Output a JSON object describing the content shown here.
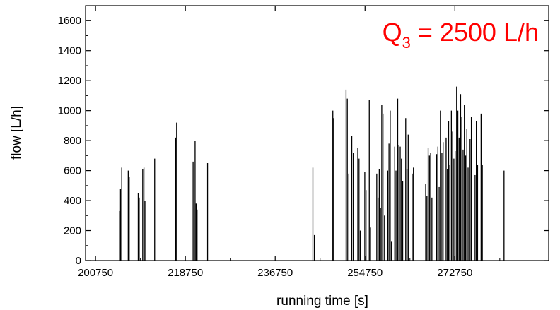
{
  "chart_data": {
    "type": "line",
    "title": "",
    "xlabel": "running time [s]",
    "ylabel": "flow [L/h]",
    "xlim": [
      198750,
      291550
    ],
    "ylim": [
      0,
      1700
    ],
    "x_ticks": [
      200750,
      218750,
      236750,
      254750,
      272750
    ],
    "y_ticks": [
      0,
      200,
      400,
      600,
      800,
      1000,
      1200,
      1400,
      1600
    ],
    "grid": false,
    "annotation": {
      "prefix": "Q",
      "subscript": "3",
      "suffix": " = 2500 L/h",
      "color": "#ff0000"
    },
    "series": [
      {
        "color": "#000000",
        "bursts": [
          [
            205500,
            330
          ],
          [
            205750,
            480
          ],
          [
            206000,
            620
          ],
          [
            207300,
            600
          ],
          [
            207500,
            560
          ],
          [
            209300,
            450
          ],
          [
            209500,
            420
          ],
          [
            210200,
            610
          ],
          [
            210450,
            620
          ],
          [
            210650,
            400
          ],
          [
            212600,
            680
          ],
          [
            216800,
            820
          ],
          [
            217000,
            920
          ],
          [
            220300,
            660
          ],
          [
            220700,
            800
          ],
          [
            220900,
            380
          ],
          [
            221100,
            340
          ],
          [
            223200,
            650
          ],
          [
            244300,
            620
          ],
          [
            244600,
            170
          ],
          [
            248300,
            1000
          ],
          [
            248500,
            950
          ],
          [
            250950,
            1140
          ],
          [
            251200,
            1080
          ],
          [
            251500,
            580
          ],
          [
            252100,
            830
          ],
          [
            252400,
            720
          ],
          [
            253300,
            750
          ],
          [
            253550,
            680
          ],
          [
            253800,
            200
          ],
          [
            254700,
            590
          ],
          [
            254950,
            470
          ],
          [
            255600,
            1070
          ],
          [
            255850,
            220
          ],
          [
            257100,
            580
          ],
          [
            257350,
            420
          ],
          [
            257600,
            610
          ],
          [
            257850,
            350
          ],
          [
            258100,
            1040
          ],
          [
            258350,
            980
          ],
          [
            258650,
            300
          ],
          [
            259300,
            600
          ],
          [
            259550,
            780
          ],
          [
            259800,
            1000
          ],
          [
            260050,
            130
          ],
          [
            260700,
            760
          ],
          [
            260950,
            600
          ],
          [
            261300,
            1080
          ],
          [
            261550,
            770
          ],
          [
            261800,
            760
          ],
          [
            262050,
            680
          ],
          [
            262300,
            530
          ],
          [
            262900,
            950
          ],
          [
            263150,
            610
          ],
          [
            263400,
            840
          ],
          [
            264200,
            580
          ],
          [
            264450,
            620
          ],
          [
            266900,
            510
          ],
          [
            267150,
            430
          ],
          [
            267400,
            750
          ],
          [
            267650,
            700
          ],
          [
            267900,
            720
          ],
          [
            268150,
            420
          ],
          [
            269100,
            710
          ],
          [
            269350,
            760
          ],
          [
            269600,
            490
          ],
          [
            269850,
            1000
          ],
          [
            270150,
            720
          ],
          [
            270400,
            790
          ],
          [
            271000,
            820
          ],
          [
            271250,
            610
          ],
          [
            271500,
            930
          ],
          [
            271750,
            640
          ],
          [
            272050,
            1000
          ],
          [
            272300,
            860
          ],
          [
            272550,
            680
          ],
          [
            272800,
            730
          ],
          [
            273100,
            1160
          ],
          [
            273350,
            1000
          ],
          [
            273600,
            820
          ],
          [
            273900,
            1110
          ],
          [
            274150,
            960
          ],
          [
            274400,
            740
          ],
          [
            274650,
            1040
          ],
          [
            274900,
            700
          ],
          [
            275150,
            880
          ],
          [
            275400,
            620
          ],
          [
            275800,
            810
          ],
          [
            276050,
            960
          ],
          [
            276800,
            570
          ],
          [
            277050,
            930
          ],
          [
            277300,
            640
          ],
          [
            278000,
            980
          ],
          [
            278250,
            640
          ],
          [
            282600,
            600
          ]
        ]
      }
    ]
  }
}
